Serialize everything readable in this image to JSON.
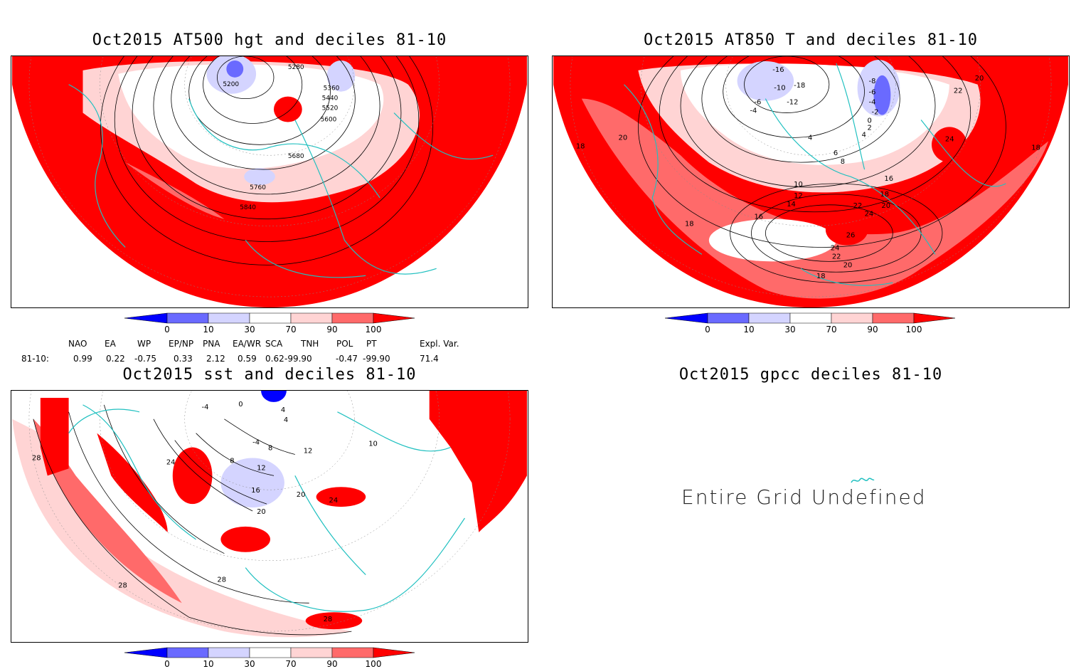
{
  "panels": {
    "hgt500": {
      "title": "Oct2015 AT500 hgt and deciles 81-10",
      "contour_labels": [
        "5200",
        "5280",
        "5360",
        "5440",
        "5520",
        "5600",
        "5680",
        "5760",
        "5840"
      ]
    },
    "t850": {
      "title": "Oct2015 AT850 T and deciles 81-10",
      "contour_labels": [
        "-16",
        "-18",
        "-10",
        "-6",
        "-12",
        "-4",
        "-8",
        "-6",
        "-4",
        "-2",
        "0",
        "2",
        "4",
        "4",
        "6",
        "8",
        "10",
        "12",
        "14",
        "16",
        "16",
        "18",
        "18",
        "18",
        "20",
        "20",
        "20",
        "22",
        "22",
        "24",
        "24",
        "24",
        "26",
        "22",
        "20",
        "18",
        "18"
      ]
    },
    "sst": {
      "title": "Oct2015 sst and deciles 81-10",
      "contour_labels": [
        "-4",
        "0",
        "4",
        "-4",
        "8",
        "12",
        "16",
        "20",
        "24",
        "28",
        "28",
        "28",
        "24",
        "20",
        "12",
        "10",
        "8",
        "4",
        "28"
      ]
    },
    "gpcc": {
      "title": "Oct2015 gpcc deciles 81-10",
      "message": "Entire Grid Undefined"
    }
  },
  "colorbar": {
    "ticks": [
      "0",
      "10",
      "30",
      "70",
      "90",
      "100"
    ],
    "colors": [
      "#0000ff",
      "#6a6aff",
      "#d4d4ff",
      "#ffffff",
      "#ffd4d4",
      "#ff6a6a",
      "#ff0000"
    ]
  },
  "indices": {
    "headers": [
      "NAO",
      "EA",
      "WP",
      "EP/NP",
      "PNA",
      "EA/WR",
      "SCA",
      "TNH",
      "POL",
      "PT",
      "Expl. Var."
    ],
    "row_label": "81-10:",
    "values": [
      "0.99",
      "0.22",
      "-0.75",
      "0.33",
      "2.12",
      "0.59",
      "0.62",
      "-99.90",
      "-0.47",
      "-99.90",
      "71.4"
    ]
  }
}
